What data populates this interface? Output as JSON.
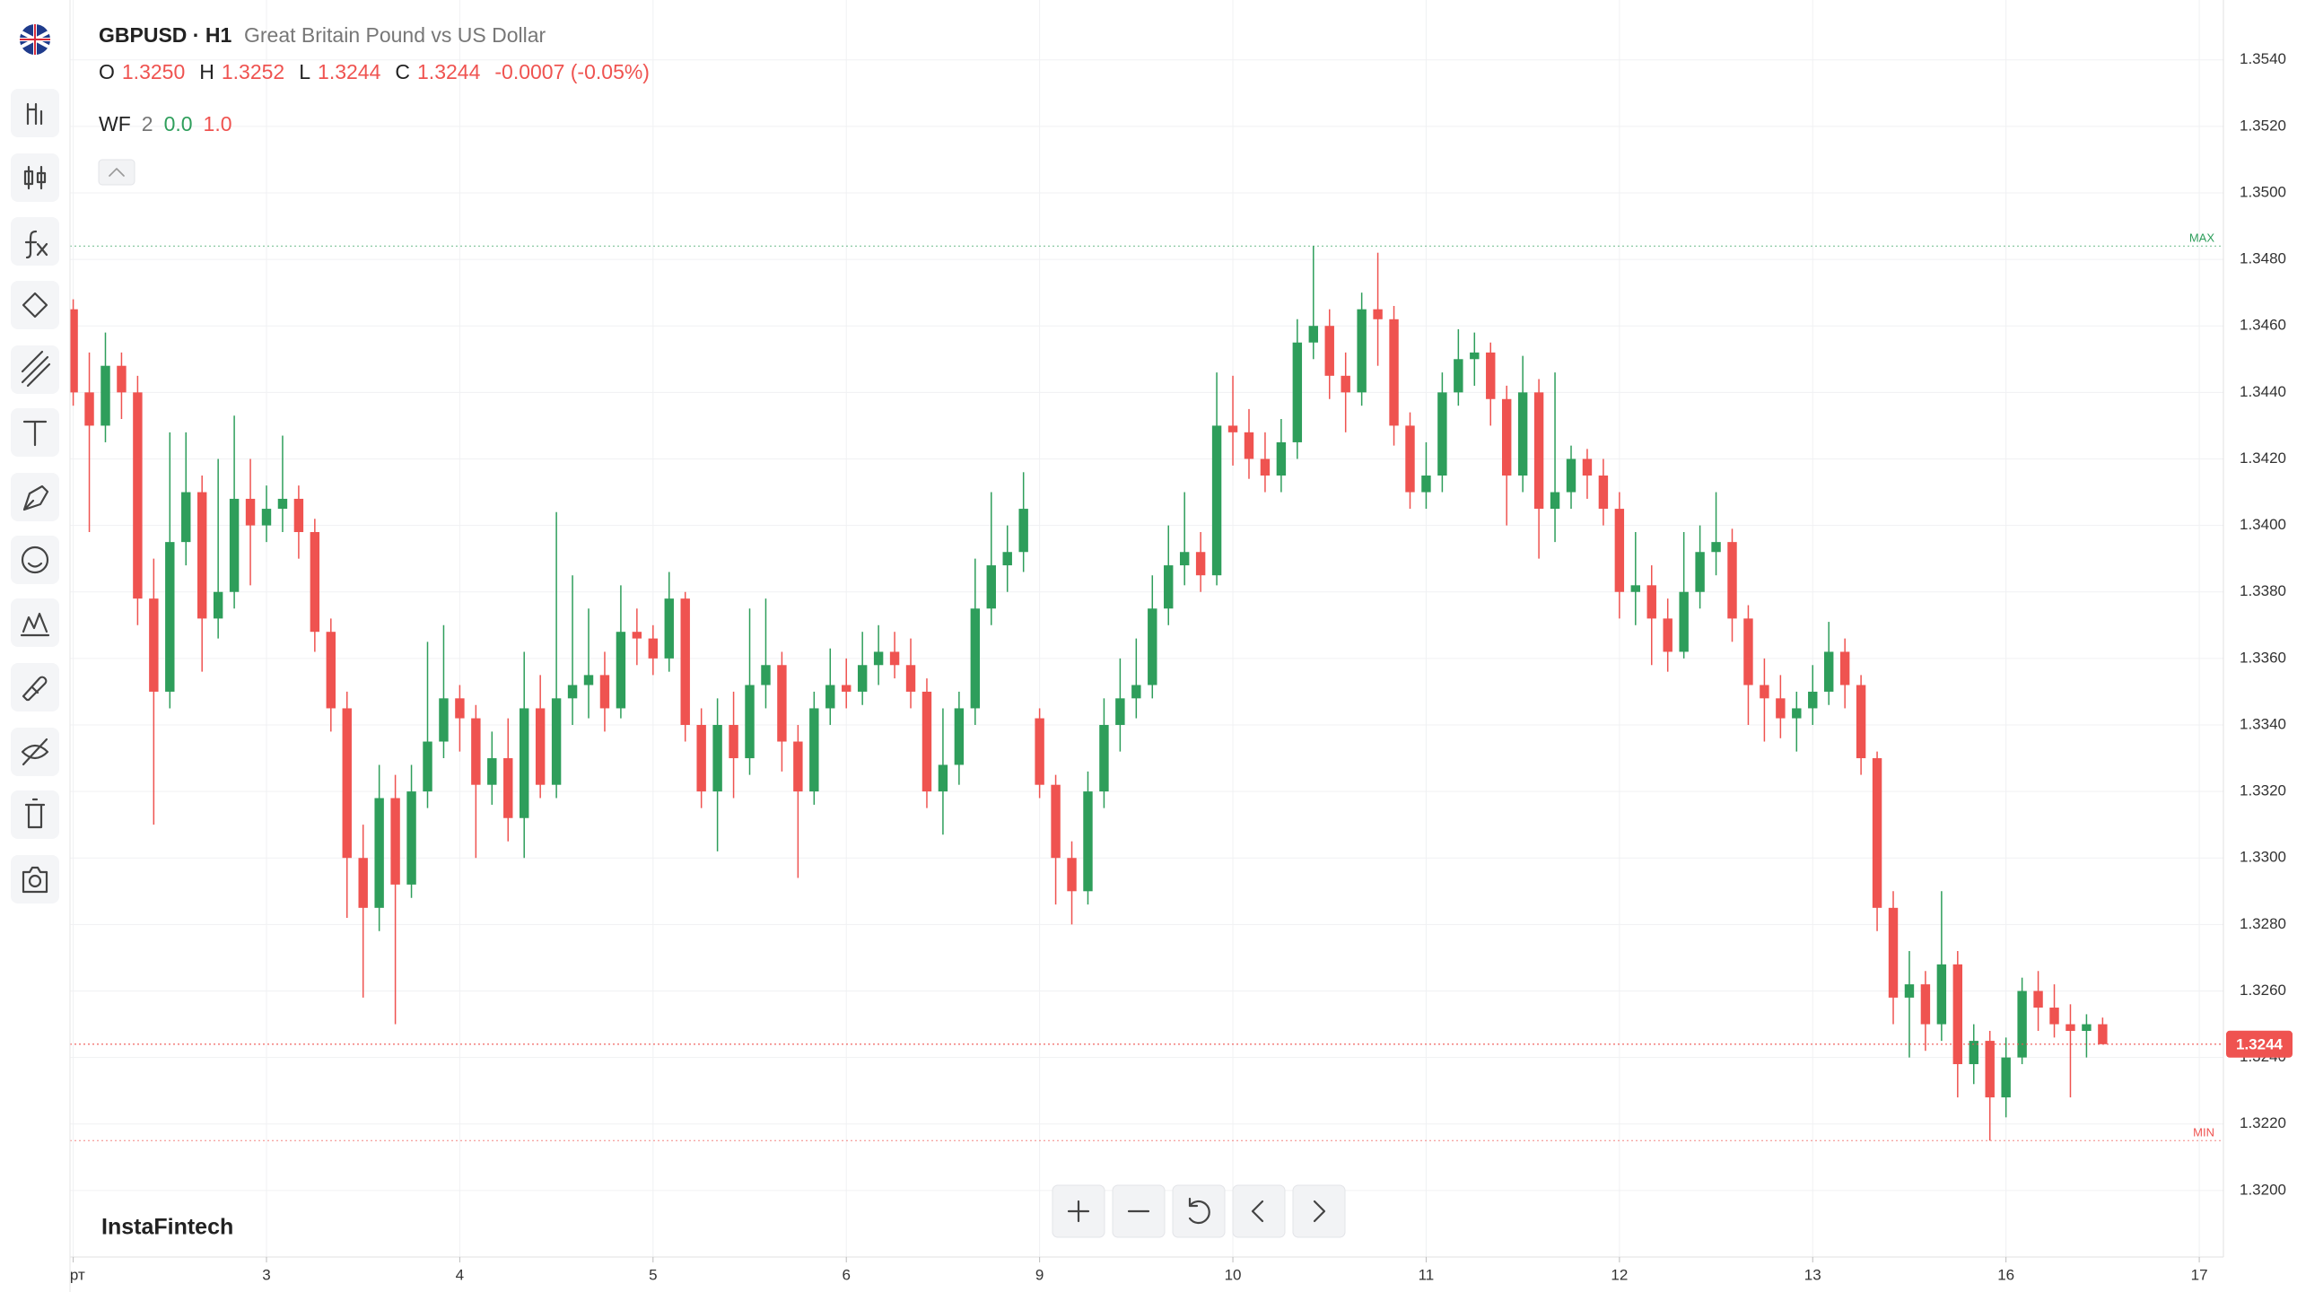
{
  "header": {
    "symbol": "GBPUSD · H1",
    "description": "Great Britain Pound vs US Dollar",
    "ohlc": [
      {
        "key": "O",
        "value": "1.3250"
      },
      {
        "key": "H",
        "value": "1.3252"
      },
      {
        "key": "L",
        "value": "1.3244"
      },
      {
        "key": "C",
        "value": "1.3244"
      }
    ],
    "change": "-0.0007 (-0.05%)"
  },
  "indicator": {
    "name": "WF",
    "params": [
      "2",
      "0.0",
      "1.0"
    ]
  },
  "brand": "InstaFintech",
  "chart_data": {
    "type": "candlestick",
    "open": [
      1.3465,
      1.344,
      1.343,
      1.3448,
      1.344,
      1.3378,
      1.335,
      1.3395,
      1.341,
      1.3372,
      1.338,
      1.3408,
      1.34,
      1.3405,
      1.3408,
      1.3398,
      1.3368,
      1.3345,
      1.33,
      1.3285,
      1.3318,
      1.3292,
      1.332,
      1.3335,
      1.3348,
      1.3342,
      1.3322,
      1.333,
      1.3312,
      1.3345,
      1.3322,
      1.3348,
      1.3352,
      1.3355,
      1.3345,
      1.3368,
      1.3366,
      1.336,
      1.3378,
      1.334,
      1.332,
      1.334,
      1.333,
      1.3352,
      1.3358,
      1.3335,
      1.332,
      1.3345,
      1.3352,
      1.335,
      1.3358,
      1.3362,
      1.3358,
      1.335,
      1.332,
      1.3328,
      1.3345,
      1.3375,
      1.3388,
      1.3392,
      1.3342,
      1.3322,
      1.33,
      1.329,
      1.332,
      1.334,
      1.3348,
      1.3352,
      1.3375,
      1.3388,
      1.3392,
      1.3385,
      1.343,
      1.3428,
      1.342,
      1.3415,
      1.3425,
      1.3455,
      1.346,
      1.3445,
      1.344,
      1.3465,
      1.3462,
      1.343,
      1.341,
      1.3415,
      1.344,
      1.345,
      1.3452,
      1.3438,
      1.3415,
      1.344,
      1.3405,
      1.341,
      1.342,
      1.3415,
      1.3405,
      1.338,
      1.3382,
      1.3372,
      1.3362,
      1.338,
      1.3392,
      1.3395,
      1.3372,
      1.3352,
      1.3348,
      1.3342,
      1.3345,
      1.335,
      1.3362,
      1.3352,
      1.333,
      1.3285,
      1.3258,
      1.3262,
      1.325,
      1.3268,
      1.3238,
      1.3245,
      1.3228,
      1.324,
      1.326,
      1.3255,
      1.325,
      1.3248,
      1.325
    ],
    "high": [
      1.3468,
      1.3452,
      1.3458,
      1.3452,
      1.3445,
      1.339,
      1.3428,
      1.3428,
      1.3415,
      1.342,
      1.3433,
      1.342,
      1.3412,
      1.3427,
      1.3412,
      1.3402,
      1.3372,
      1.335,
      1.331,
      1.3328,
      1.3325,
      1.3328,
      1.3365,
      1.337,
      1.3352,
      1.3346,
      1.3338,
      1.3342,
      1.3362,
      1.3355,
      1.3404,
      1.3385,
      1.3375,
      1.3362,
      1.3382,
      1.3375,
      1.337,
      1.3386,
      1.338,
      1.3345,
      1.3348,
      1.335,
      1.3375,
      1.3378,
      1.3362,
      1.334,
      1.335,
      1.3363,
      1.336,
      1.3368,
      1.337,
      1.3368,
      1.3366,
      1.3354,
      1.3345,
      1.335,
      1.339,
      1.341,
      1.34,
      1.3416,
      1.3345,
      1.3325,
      1.3305,
      1.3326,
      1.3348,
      1.336,
      1.3366,
      1.3385,
      1.34,
      1.341,
      1.3398,
      1.3446,
      1.3445,
      1.3435,
      1.3428,
      1.3432,
      1.3462,
      1.3484,
      1.3465,
      1.3452,
      1.347,
      1.3482,
      1.3466,
      1.3434,
      1.3425,
      1.3446,
      1.3459,
      1.3458,
      1.3455,
      1.3442,
      1.3451,
      1.3444,
      1.3446,
      1.3424,
      1.3423,
      1.342,
      1.341,
      1.3398,
      1.3388,
      1.3378,
      1.3398,
      1.34,
      1.341,
      1.3399,
      1.3376,
      1.336,
      1.3355,
      1.335,
      1.3358,
      1.3371,
      1.3366,
      1.3355,
      1.3332,
      1.329,
      1.3272,
      1.3266,
      1.329,
      1.3272,
      1.325,
      1.3248,
      1.3246,
      1.3264,
      1.3266,
      1.3262,
      1.3256,
      1.3253,
      1.3252
    ],
    "low": [
      1.3436,
      1.3398,
      1.3425,
      1.3432,
      1.337,
      1.331,
      1.3345,
      1.3388,
      1.3356,
      1.3366,
      1.3375,
      1.3382,
      1.3395,
      1.3398,
      1.339,
      1.3362,
      1.3338,
      1.3282,
      1.3258,
      1.3278,
      1.325,
      1.3288,
      1.3315,
      1.333,
      1.3332,
      1.33,
      1.3316,
      1.3305,
      1.33,
      1.3318,
      1.3318,
      1.334,
      1.3342,
      1.3338,
      1.3342,
      1.3358,
      1.3355,
      1.3356,
      1.3335,
      1.3315,
      1.3302,
      1.3318,
      1.3325,
      1.3345,
      1.3326,
      1.3294,
      1.3316,
      1.334,
      1.3345,
      1.3346,
      1.3352,
      1.3354,
      1.3345,
      1.3315,
      1.3307,
      1.3322,
      1.334,
      1.337,
      1.338,
      1.3386,
      1.3318,
      1.3286,
      1.328,
      1.3286,
      1.3315,
      1.3332,
      1.3342,
      1.3348,
      1.337,
      1.3382,
      1.338,
      1.3382,
      1.3418,
      1.3414,
      1.341,
      1.341,
      1.342,
      1.345,
      1.3438,
      1.3428,
      1.3436,
      1.3448,
      1.3424,
      1.3405,
      1.3405,
      1.341,
      1.3436,
      1.3442,
      1.343,
      1.34,
      1.341,
      1.339,
      1.3395,
      1.3405,
      1.3408,
      1.34,
      1.3372,
      1.337,
      1.3358,
      1.3356,
      1.336,
      1.3375,
      1.3385,
      1.3365,
      1.334,
      1.3335,
      1.3336,
      1.3332,
      1.334,
      1.3346,
      1.3345,
      1.3325,
      1.3278,
      1.325,
      1.324,
      1.3242,
      1.3245,
      1.3228,
      1.3232,
      1.3215,
      1.3222,
      1.3238,
      1.3248,
      1.3246,
      1.3228,
      1.324,
      1.3244
    ],
    "close": [
      1.344,
      1.343,
      1.3448,
      1.344,
      1.3378,
      1.335,
      1.3395,
      1.341,
      1.3372,
      1.338,
      1.3408,
      1.34,
      1.3405,
      1.3408,
      1.3398,
      1.3368,
      1.3345,
      1.33,
      1.3285,
      1.3318,
      1.3292,
      1.332,
      1.3335,
      1.3348,
      1.3342,
      1.3322,
      1.333,
      1.3312,
      1.3345,
      1.3322,
      1.3348,
      1.3352,
      1.3355,
      1.3345,
      1.3368,
      1.3366,
      1.336,
      1.3378,
      1.334,
      1.332,
      1.334,
      1.333,
      1.3352,
      1.3358,
      1.3335,
      1.332,
      1.3345,
      1.3352,
      1.335,
      1.3358,
      1.3362,
      1.3358,
      1.335,
      1.332,
      1.3328,
      1.3345,
      1.3375,
      1.3388,
      1.3392,
      1.3405,
      1.3322,
      1.33,
      1.329,
      1.332,
      1.334,
      1.3348,
      1.3352,
      1.3375,
      1.3388,
      1.3392,
      1.3385,
      1.343,
      1.3428,
      1.342,
      1.3415,
      1.3425,
      1.3455,
      1.346,
      1.3445,
      1.344,
      1.3465,
      1.3462,
      1.343,
      1.341,
      1.3415,
      1.344,
      1.345,
      1.3452,
      1.3438,
      1.3415,
      1.344,
      1.3405,
      1.341,
      1.342,
      1.3415,
      1.3405,
      1.338,
      1.3382,
      1.3372,
      1.3362,
      1.338,
      1.3392,
      1.3395,
      1.3372,
      1.3352,
      1.3348,
      1.3342,
      1.3345,
      1.335,
      1.3362,
      1.3352,
      1.333,
      1.3285,
      1.3258,
      1.3262,
      1.325,
      1.3268,
      1.3238,
      1.3245,
      1.3228,
      1.324,
      1.326,
      1.3255,
      1.325,
      1.3248,
      1.325,
      1.3244
    ],
    "xlim": [
      -0.2,
      133.5
    ],
    "xticks": [
      {
        "value": 0,
        "label": "арт"
      },
      {
        "value": 12,
        "label": "3"
      },
      {
        "value": 24,
        "label": "4"
      },
      {
        "value": 36,
        "label": "5"
      },
      {
        "value": 48,
        "label": "6"
      },
      {
        "value": 60,
        "label": "9"
      },
      {
        "value": 72,
        "label": "10"
      },
      {
        "value": 84,
        "label": "11"
      },
      {
        "value": 96,
        "label": "12"
      },
      {
        "value": 108,
        "label": "13"
      },
      {
        "value": 120,
        "label": "16"
      },
      {
        "value": 132,
        "label": "17"
      }
    ],
    "ylim": [
      1.318,
      1.3558
    ],
    "yticks": [
      {
        "value": 1.32,
        "label": "1.3200"
      },
      {
        "value": 1.322,
        "label": "1.3220"
      },
      {
        "value": 1.324,
        "label": "1.3240"
      },
      {
        "value": 1.326,
        "label": "1.3260"
      },
      {
        "value": 1.328,
        "label": "1.3280"
      },
      {
        "value": 1.33,
        "label": "1.3300"
      },
      {
        "value": 1.332,
        "label": "1.3320"
      },
      {
        "value": 1.334,
        "label": "1.3340"
      },
      {
        "value": 1.336,
        "label": "1.3360"
      },
      {
        "value": 1.338,
        "label": "1.3380"
      },
      {
        "value": 1.34,
        "label": "1.3400"
      },
      {
        "value": 1.342,
        "label": "1.3420"
      },
      {
        "value": 1.344,
        "label": "1.3440"
      },
      {
        "value": 1.346,
        "label": "1.3460"
      },
      {
        "value": 1.348,
        "label": "1.3480"
      },
      {
        "value": 1.35,
        "label": "1.3500"
      },
      {
        "value": 1.352,
        "label": "1.3520"
      },
      {
        "value": 1.354,
        "label": "1.3540"
      }
    ],
    "grid": true,
    "up_color": "#2e9e5b",
    "down_color": "#ef5350",
    "last_price_label": "1.3244",
    "max_label": "MAX",
    "min_label": "MIN"
  }
}
